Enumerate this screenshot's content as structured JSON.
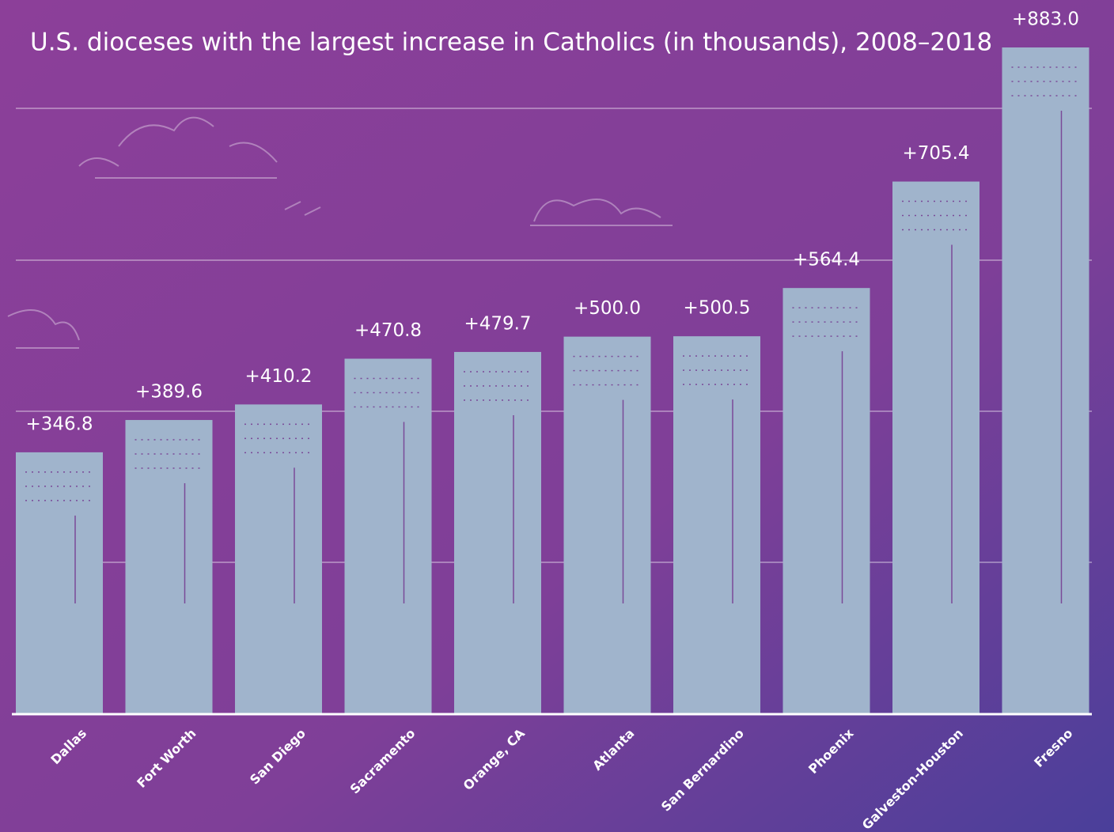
{
  "chart_data": {
    "type": "bar",
    "title": "U.S. dioceses with the largest increase in Catholics (in thousands), 2008–2018",
    "categories": [
      "Dallas",
      "Fort Worth",
      "San Diego",
      "Sacramento",
      "Orange, CA",
      "Atlanta",
      "San Bernardino",
      "Phoenix",
      "Galveston-Houston",
      "Fresno"
    ],
    "values": [
      346.8,
      389.6,
      410.2,
      470.8,
      479.7,
      500.0,
      500.5,
      564.4,
      705.4,
      883.0
    ],
    "value_labels": [
      "+346.8",
      "+389.6",
      "+410.2",
      "+470.8",
      "+479.7",
      "+500.0",
      "+500.5",
      "+564.4",
      "+705.4",
      "+883.0"
    ],
    "color": "#a0b4cc"
  }
}
